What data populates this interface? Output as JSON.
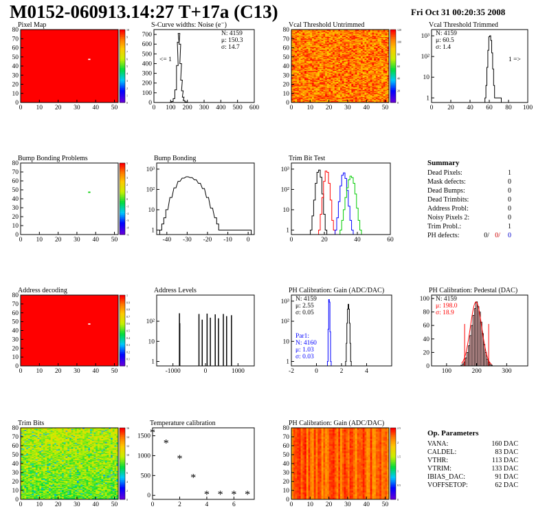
{
  "header": {
    "title": "M0152-060913.14:27 T+17a (C13)",
    "date": "Fri Oct 31 00:20:35 2008"
  },
  "colors": {
    "grid_red": "#ff0000",
    "noise_blue": "#0000ff",
    "noise_red": "#ff0000",
    "noise_green": "#00cc00"
  },
  "chart_data": [
    {
      "id": "pixel_map",
      "type": "heatmap",
      "title": "Pixel Map",
      "xlim": [
        0,
        52
      ],
      "ylim": [
        0,
        80
      ],
      "xticks": [
        "0",
        "10",
        "20",
        "30",
        "40",
        "50"
      ],
      "yticks": [
        "0",
        "10",
        "20",
        "30",
        "40",
        "50",
        "60",
        "70",
        "80"
      ],
      "zticks": [
        "0",
        "1",
        "2",
        "3",
        "4",
        "5",
        "6",
        "7",
        "8",
        "9",
        "10"
      ],
      "fill": "uniform-red",
      "dead_pixel": [
        36,
        48
      ]
    },
    {
      "id": "scurve",
      "type": "line",
      "title": "S-Curve widths: Noise (e⁻)",
      "xlim": [
        0,
        600
      ],
      "ylim": [
        0,
        750
      ],
      "xticks": [
        "0",
        "100",
        "200",
        "300",
        "400",
        "500",
        "600"
      ],
      "yticks": [
        "0",
        "100",
        "200",
        "300",
        "400",
        "500",
        "600",
        "700"
      ],
      "stats": [
        {
          "label": "N:",
          "value": "4159"
        },
        {
          "label": "μ:",
          "value": "150.3"
        },
        {
          "label": "σ:",
          "value": "14.7"
        }
      ],
      "annotation": "<= 1",
      "hist": {
        "x": [
          100,
          110,
          120,
          130,
          140,
          145,
          150,
          155,
          160,
          165,
          170,
          175,
          180,
          190,
          200
        ],
        "y": [
          2,
          10,
          40,
          130,
          380,
          620,
          710,
          600,
          400,
          230,
          120,
          55,
          20,
          6,
          1
        ]
      }
    },
    {
      "id": "vcal_untrimmed",
      "type": "heatmap",
      "title": "Vcal Threshold Untrimmed",
      "xlim": [
        0,
        52
      ],
      "ylim": [
        0,
        80
      ],
      "xticks": [
        "0",
        "10",
        "20",
        "30",
        "40",
        "50"
      ],
      "yticks": [
        "0",
        "10",
        "20",
        "30",
        "40",
        "50",
        "60",
        "70",
        "80"
      ],
      "zticks": [
        "0",
        "20",
        "40",
        "60",
        "80",
        "100",
        "120"
      ],
      "fill": "random-orange"
    },
    {
      "id": "vcal_trimmed",
      "type": "line",
      "title": "Vcal Threshold Trimmed",
      "xlim": [
        0,
        100
      ],
      "log": true,
      "ylim": [
        0.6,
        2000
      ],
      "xticks": [
        "0",
        "20",
        "40",
        "60",
        "80",
        "100"
      ],
      "yticks": [
        "1",
        "10",
        "10²",
        "10³"
      ],
      "stats": [
        {
          "label": "N:",
          "value": "4159"
        },
        {
          "label": "μ:",
          "value": "60.5"
        },
        {
          "label": "σ:",
          "value": "1.4"
        }
      ],
      "annotation": "1 =>",
      "hist": {
        "x": [
          56,
          57,
          58,
          59,
          60,
          61,
          62,
          63,
          64,
          65,
          66,
          68,
          70,
          72
        ],
        "y": [
          1,
          4,
          30,
          200,
          900,
          1000,
          600,
          150,
          25,
          4,
          1,
          1,
          1,
          1
        ]
      }
    },
    {
      "id": "bump_map",
      "type": "heatmap",
      "title": "Bump Bonding Problems",
      "xlim": [
        0,
        52
      ],
      "ylim": [
        0,
        80
      ],
      "xticks": [
        "0",
        "10",
        "20",
        "30",
        "40",
        "50"
      ],
      "yticks": [
        "0",
        "10",
        "20",
        "30",
        "40",
        "50",
        "60",
        "70",
        "80"
      ],
      "zticks": [
        "-5",
        "-4",
        "-3",
        "-2",
        "-1",
        "0",
        "1",
        "2",
        "3",
        "4",
        "5"
      ],
      "fill": "white",
      "dead_pixel": [
        36,
        48
      ]
    },
    {
      "id": "bump_bonding",
      "type": "line",
      "title": "Bump Bonding",
      "xlim": [
        -45,
        3
      ],
      "log": true,
      "ylim": [
        0.6,
        2000
      ],
      "xticks": [
        "-40",
        "-30",
        "-20",
        "-10",
        "0"
      ],
      "yticks": [
        "1",
        "10",
        "10²",
        "10³"
      ],
      "hist": {
        "x": [
          -43,
          -42,
          -41,
          -40,
          -38,
          -36,
          -34,
          -32,
          -30,
          -28,
          -26,
          -24,
          -22,
          -20,
          -18,
          -16,
          -15,
          -14,
          -13,
          1
        ],
        "y": [
          1,
          2,
          4,
          10,
          40,
          120,
          250,
          360,
          420,
          380,
          300,
          200,
          110,
          40,
          12,
          4,
          2,
          1,
          1,
          1
        ]
      }
    },
    {
      "id": "trim_bit_test",
      "type": "line",
      "title": "Trim Bit Test",
      "xlim": [
        0,
        60
      ],
      "log": true,
      "ylim": [
        0.6,
        2000
      ],
      "xticks": [
        "0",
        "20",
        "40",
        "60"
      ],
      "yticks": [
        "1",
        "10",
        "10²",
        "10³"
      ],
      "series": [
        {
          "color": "#000000",
          "x": [
            12,
            13,
            14,
            15,
            16,
            17,
            18,
            19,
            20,
            21
          ],
          "y": [
            1,
            5,
            30,
            200,
            700,
            900,
            400,
            60,
            6,
            1
          ]
        },
        {
          "color": "#ff0000",
          "x": [
            17,
            18,
            19,
            20,
            21,
            22,
            23,
            24,
            25,
            26
          ],
          "y": [
            1,
            6,
            40,
            250,
            800,
            700,
            200,
            30,
            3,
            1
          ]
        },
        {
          "color": "#0000ff",
          "x": [
            27,
            28,
            29,
            30,
            31,
            32,
            33,
            34,
            35,
            36,
            37
          ],
          "y": [
            1,
            4,
            25,
            150,
            500,
            650,
            350,
            90,
            15,
            3,
            1
          ]
        },
        {
          "color": "#00cc00",
          "x": [
            30,
            31,
            32,
            33,
            34,
            35,
            36,
            37,
            38,
            39,
            40,
            41,
            42
          ],
          "y": [
            1,
            3,
            10,
            40,
            120,
            300,
            450,
            380,
            200,
            60,
            12,
            3,
            1
          ]
        }
      ]
    },
    {
      "id": "address_map",
      "type": "heatmap",
      "title": "Address decoding",
      "xlim": [
        0,
        52
      ],
      "ylim": [
        0,
        80
      ],
      "xticks": [
        "0",
        "10",
        "20",
        "30",
        "40",
        "50"
      ],
      "yticks": [
        "0",
        "10",
        "20",
        "30",
        "40",
        "50",
        "60",
        "70",
        "80"
      ],
      "zticks": [
        "0",
        "0.1",
        "0.2",
        "0.3",
        "0.4",
        "0.5",
        "0.6",
        "0.7",
        "0.8",
        "0.9",
        "1"
      ],
      "fill": "uniform-red",
      "dead_pixel": [
        36,
        48
      ]
    },
    {
      "id": "address_levels",
      "type": "bar",
      "title": "Address Levels",
      "xlim": [
        -1500,
        1500
      ],
      "log": true,
      "ylim": [
        0.6,
        2000
      ],
      "xticks": [
        "-1000",
        "0",
        "1000"
      ],
      "yticks": [
        "1",
        "10",
        "10²"
      ],
      "spikes": [
        {
          "x": -800,
          "y": 250
        },
        {
          "x": -790,
          "y": 80
        },
        {
          "x": -200,
          "y": 230
        },
        {
          "x": -100,
          "y": 120
        },
        {
          "x": 50,
          "y": 240
        },
        {
          "x": 150,
          "y": 150
        },
        {
          "x": 300,
          "y": 220
        },
        {
          "x": 400,
          "y": 140
        },
        {
          "x": 550,
          "y": 230
        },
        {
          "x": 650,
          "y": 180
        },
        {
          "x": 800,
          "y": 200
        }
      ]
    },
    {
      "id": "ph_gain",
      "type": "line",
      "title": "PH Calibration: Gain (ADC/DAC)",
      "xlim": [
        -2,
        6
      ],
      "log": true,
      "ylim": [
        0.6,
        2000
      ],
      "xticks": [
        "-2",
        "0",
        "2",
        "4"
      ],
      "yticks": [
        "1",
        "10",
        "10²",
        "10³"
      ],
      "stats": [
        {
          "label": "N:",
          "value": "4159"
        },
        {
          "label": "μ:",
          "value": "2.55"
        },
        {
          "label": "σ:",
          "value": "0.05"
        }
      ],
      "stats2_title": "Par1:",
      "stats2": [
        {
          "label": "N:",
          "value": "4160"
        },
        {
          "label": "μ:",
          "value": "1.03"
        },
        {
          "label": "σ:",
          "value": "0.03"
        }
      ],
      "series": [
        {
          "color": "#000000",
          "x": [
            2.35,
            2.4,
            2.45,
            2.5,
            2.55,
            2.6,
            2.65,
            2.7,
            2.75
          ],
          "y": [
            1,
            8,
            80,
            400,
            700,
            400,
            80,
            8,
            1
          ]
        },
        {
          "color": "#0000ff",
          "x": [
            0.9,
            0.95,
            1.0,
            1.05,
            1.1,
            1.15
          ],
          "y": [
            1,
            40,
            1200,
            900,
            30,
            1
          ]
        }
      ]
    },
    {
      "id": "ph_pedestal",
      "type": "bar",
      "title": "PH Calibration: Pedestal (DAC)",
      "xlim": [
        50,
        370
      ],
      "ylim": [
        0,
        105
      ],
      "xticks": [
        "100",
        "200",
        "300"
      ],
      "yticks": [
        "0",
        "20",
        "40",
        "60",
        "80",
        "100"
      ],
      "stats": [
        {
          "label": "N:",
          "value": "4159"
        },
        {
          "label": "μ:",
          "value": "198.0"
        },
        {
          "label": "σ:",
          "value": "18.9"
        }
      ],
      "hist": {
        "x": [
          150,
          155,
          160,
          165,
          170,
          175,
          180,
          185,
          190,
          195,
          200,
          205,
          210,
          215,
          220,
          225,
          230,
          235,
          240,
          245,
          250
        ],
        "y": [
          1,
          3,
          6,
          12,
          20,
          30,
          45,
          60,
          75,
          85,
          95,
          88,
          80,
          65,
          48,
          32,
          20,
          10,
          5,
          2,
          1
        ]
      },
      "markers": [
        160,
        240
      ]
    },
    {
      "id": "trim_bits",
      "type": "heatmap",
      "title": "Trim Bits",
      "xlim": [
        0,
        52
      ],
      "ylim": [
        0,
        80
      ],
      "xticks": [
        "0",
        "10",
        "20",
        "30",
        "40",
        "50"
      ],
      "yticks": [
        "0",
        "10",
        "20",
        "30",
        "40",
        "50",
        "60",
        "70",
        "80"
      ],
      "zticks": [
        "0",
        "2",
        "4",
        "6",
        "8",
        "10",
        "12",
        "14",
        "16"
      ],
      "fill": "random-green"
    },
    {
      "id": "temperature",
      "type": "scatter",
      "title": "Temperature calibration",
      "xlim": [
        0,
        7.5
      ],
      "ylim": [
        -100,
        1700
      ],
      "xticks": [
        "0",
        "2",
        "4",
        "6"
      ],
      "yticks": [
        "0",
        "500",
        "1000",
        "1500"
      ],
      "x": [
        0,
        1,
        2,
        3,
        4,
        5,
        6,
        7
      ],
      "y": [
        1560,
        1290,
        900,
        430,
        5,
        5,
        5,
        5
      ]
    },
    {
      "id": "ph_gain_map",
      "type": "heatmap",
      "title": "PH Calibration: Gain (ADC/DAC)",
      "xlim": [
        0,
        52
      ],
      "ylim": [
        0,
        80
      ],
      "xticks": [
        "0",
        "10",
        "20",
        "30",
        "40",
        "50"
      ],
      "yticks": [
        "0",
        "10",
        "20",
        "30",
        "40",
        "50",
        "60",
        "70",
        "80"
      ],
      "zticks": [
        "0",
        "0.5",
        "1",
        "1.5",
        "2",
        "2.5"
      ],
      "fill": "red-columns"
    }
  ],
  "summary": {
    "title": "Summary",
    "rows": [
      {
        "label": "Dead Pixels:",
        "value": "1"
      },
      {
        "label": "Mask defects:",
        "value": "0"
      },
      {
        "label": "Dead Bumps:",
        "value": "0"
      },
      {
        "label": "Dead Trimbits:",
        "value": "0"
      },
      {
        "label": "Address Probl:",
        "value": "0"
      },
      {
        "label": "Noisy Pixels 2:",
        "value": "0"
      },
      {
        "label": "Trim Probl.:",
        "value": "1"
      }
    ],
    "ph_label": "PH defects:",
    "ph_values": [
      {
        "value": "0/",
        "color": "#000000"
      },
      {
        "value": "0/",
        "color": "#cc0000"
      },
      {
        "value": "0",
        "color": "#0000cc"
      }
    ]
  },
  "parameters": {
    "title": "Op. Parameters",
    "rows": [
      {
        "label": "VANA:",
        "value": "160 DAC"
      },
      {
        "label": "CALDEL:",
        "value": "83 DAC"
      },
      {
        "label": "VTHR:",
        "value": "113 DAC"
      },
      {
        "label": "VTRIM:",
        "value": "133 DAC"
      },
      {
        "label": "IBIAS_DAC:",
        "value": "91 DAC"
      },
      {
        "label": "VOFFSETOP:",
        "value": "62 DAC"
      }
    ]
  }
}
